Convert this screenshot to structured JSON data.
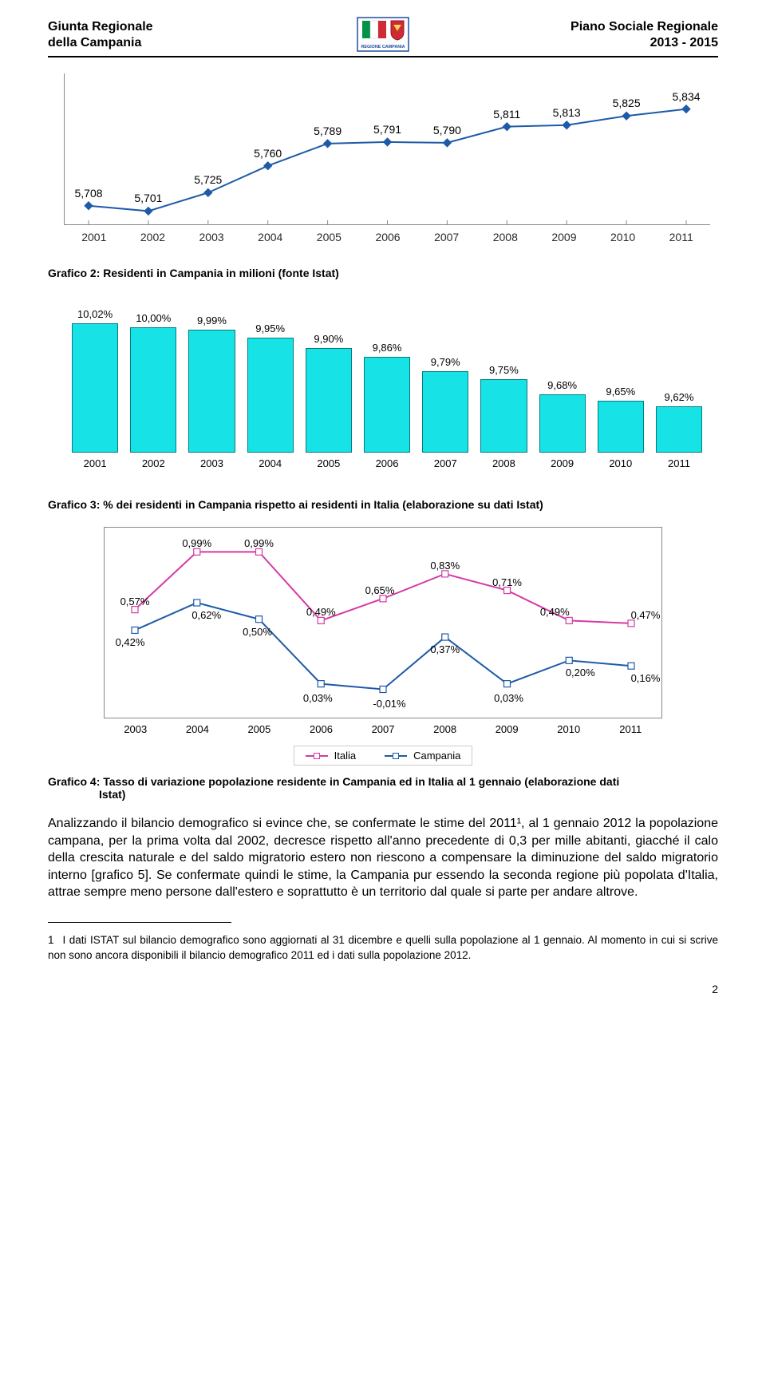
{
  "header": {
    "left_line1": "Giunta Regionale",
    "left_line2": "della Campania",
    "right_line1": "Piano Sociale Regionale",
    "right_line2": "2013 - 2015"
  },
  "logo": {
    "flag_colors": [
      "#009246",
      "#ffffff",
      "#ce2b37"
    ],
    "shield_color": "#ce2b37",
    "border_color": "#1e4ea0",
    "text": "REGIONE CAMPANIA"
  },
  "chart1": {
    "type": "line",
    "caption": "Grafico 2: Residenti in Campania in milioni (fonte Istat)",
    "categories": [
      "2001",
      "2002",
      "2003",
      "2004",
      "2005",
      "2006",
      "2007",
      "2008",
      "2009",
      "2010",
      "2011"
    ],
    "values": [
      5708,
      5701,
      5725,
      5760,
      5789,
      5791,
      5790,
      5811,
      5813,
      5825,
      5834
    ],
    "value_labels": [
      "5,708",
      "5,701",
      "5,725",
      "5,760",
      "5,789",
      "5,791",
      "5,790",
      "5,811",
      "5,813",
      "5,825",
      "5,834"
    ],
    "ymin": 5690,
    "ymax": 5845,
    "line_color": "#1e5aa8",
    "marker_fill": "#1e5aa8",
    "marker": "diamond",
    "axis_color": "#888888",
    "tick_color": "#555555",
    "label_fontsize": 14
  },
  "chart2": {
    "type": "bar",
    "caption": "Grafico 3: % dei residenti in Campania rispetto ai residenti in Italia (elaborazione su dati Istat)",
    "categories": [
      "2001",
      "2002",
      "2003",
      "2004",
      "2005",
      "2006",
      "2007",
      "2008",
      "2009",
      "2010",
      "2011"
    ],
    "values": [
      10.02,
      10.0,
      9.99,
      9.95,
      9.9,
      9.86,
      9.79,
      9.75,
      9.68,
      9.65,
      9.62
    ],
    "value_labels": [
      "10,02%",
      "10,00%",
      "9,99%",
      "9,95%",
      "9,90%",
      "9,86%",
      "9,79%",
      "9,75%",
      "9,68%",
      "9,65%",
      "9,62%"
    ],
    "ymin": 9.4,
    "ymax": 10.05,
    "bar_fill": "#17e3e6",
    "bar_border": "#067a7d",
    "label_fontsize": 13
  },
  "chart3": {
    "type": "line",
    "caption": "Grafico 4: Tasso di variazione popolazione residente in Campania ed in Italia al 1 gennaio (elaborazione dati",
    "caption_cont": "Istat)",
    "categories": [
      "2003",
      "2004",
      "2005",
      "2006",
      "2007",
      "2008",
      "2009",
      "2010",
      "2011"
    ],
    "ymin": -0.1,
    "ymax": 1.05,
    "background_color": "#ffffff",
    "grid_color": "#888888",
    "series": [
      {
        "name": "Italia",
        "color": "#d63aa4",
        "marker": "square",
        "values": [
          0.57,
          0.99,
          0.99,
          0.49,
          0.65,
          0.83,
          0.71,
          0.49,
          0.47
        ],
        "value_labels": [
          "0,57%",
          "0,99%",
          "0,99%",
          "0,49%",
          "0,65%",
          "0,83%",
          "0,71%",
          "0,49%",
          "0,47%"
        ],
        "label_dy": [
          -18,
          -18,
          -18,
          -18,
          -18,
          -18,
          -18,
          -18,
          -18
        ],
        "label_dx": [
          0,
          0,
          0,
          0,
          -4,
          0,
          0,
          -18,
          18
        ]
      },
      {
        "name": "Campania",
        "color": "#1e5aa8",
        "marker": "square",
        "values": [
          0.42,
          0.62,
          0.5,
          0.03,
          -0.01,
          0.37,
          0.03,
          0.2,
          0.16
        ],
        "value_labels": [
          "0,42%",
          "0,62%",
          "0,50%",
          "0,03%",
          "-0,01%",
          "0,37%",
          "0,03%",
          "0,20%",
          "0,16%"
        ],
        "label_dy": [
          8,
          8,
          8,
          10,
          10,
          8,
          10,
          8,
          8
        ],
        "label_dx": [
          -6,
          12,
          -2,
          -4,
          8,
          0,
          2,
          14,
          18
        ]
      }
    ],
    "legend": {
      "items": [
        "Italia",
        "Campania"
      ]
    },
    "label_fontsize": 13
  },
  "body_text": "Analizzando il bilancio demografico si evince che, se confermate le stime del 2011¹, al 1 gennaio 2012 la popolazione campana, per la prima volta dal 2002, decresce rispetto all'anno precedente di 0,3 per mille abitanti, giacché il calo della crescita naturale e del saldo migratorio estero non riescono a compensare la diminuzione del saldo migratorio interno [grafico 5]. Se confermate quindi le stime, la Campania pur essendo la seconda regione più popolata d'Italia, attrae sempre meno persone dall'estero e soprattutto è un territorio dal quale si parte per andare altrove.",
  "footnote": {
    "num": "1",
    "text": "I dati ISTAT sul bilancio demografico sono aggiornati al 31 dicembre e quelli sulla popolazione al 1 gennaio. Al momento in cui si scrive non sono ancora disponibili il bilancio demografico 2011 ed i dati sulla popolazione 2012."
  },
  "page_number": "2"
}
